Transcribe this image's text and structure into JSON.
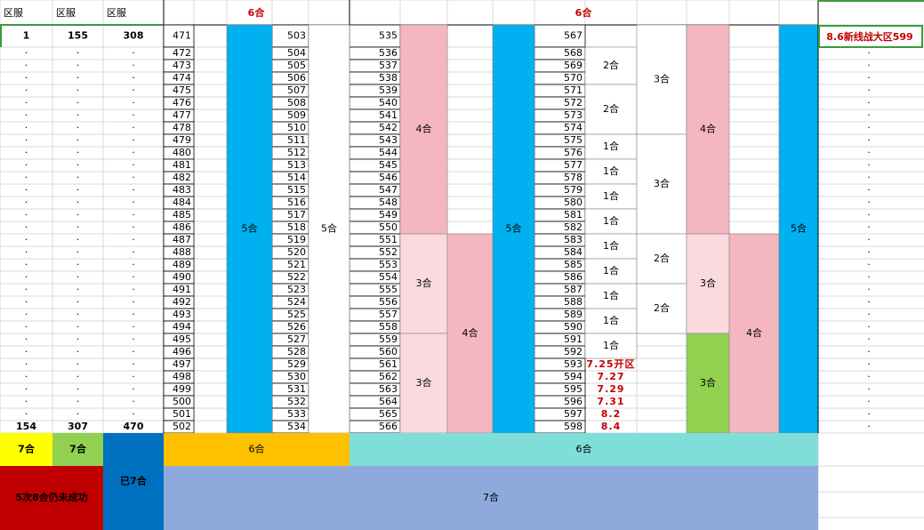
{
  "header": {
    "labels": [
      "区服",
      "区服",
      "区服"
    ],
    "groups": [
      "6合",
      "6合"
    ]
  },
  "first_row": [
    1,
    155,
    308
  ],
  "last_row": [
    154,
    307,
    470
  ],
  "dot": ".",
  "columns": {
    "d": [
      471,
      472,
      473,
      474,
      475,
      476,
      477,
      478,
      479,
      480,
      481,
      482,
      483,
      484,
      485,
      486,
      487,
      488,
      489,
      490,
      491,
      492,
      493,
      494,
      495,
      496,
      497,
      498,
      499,
      500,
      501,
      502
    ],
    "g": [
      503,
      504,
      505,
      506,
      507,
      508,
      509,
      510,
      511,
      512,
      513,
      514,
      515,
      516,
      517,
      518,
      519,
      520,
      521,
      522,
      523,
      524,
      525,
      526,
      527,
      528,
      529,
      530,
      531,
      532,
      533,
      534
    ],
    "i": [
      535,
      536,
      537,
      538,
      539,
      540,
      541,
      542,
      543,
      544,
      545,
      546,
      547,
      548,
      549,
      550,
      551,
      552,
      553,
      554,
      555,
      556,
      557,
      558,
      559,
      560,
      561,
      562,
      563,
      564,
      565,
      566
    ],
    "m": [
      567,
      568,
      569,
      570,
      571,
      572,
      573,
      574,
      575,
      576,
      577,
      578,
      579,
      580,
      581,
      582,
      583,
      584,
      585,
      586,
      587,
      588,
      589,
      590,
      591,
      592,
      593,
      594,
      595,
      596,
      597,
      598
    ]
  },
  "blocks": [
    {
      "label": "5合",
      "fill": "#00b0f0"
    },
    {
      "label": "5合",
      "fill": "#ffffff"
    },
    {
      "label": "4合",
      "fill": "#f4b6bf"
    },
    {
      "label": "3合",
      "fill": "#fadadf"
    },
    {
      "label": "3合",
      "fill": "#fadadf"
    },
    {
      "label": "4合",
      "fill": "#f4b6bf"
    },
    {
      "label": "5合",
      "fill": "#00b0f0"
    },
    {
      "label": "2合",
      "fill": "#ffffff"
    },
    {
      "label": "2合",
      "fill": "#ffffff"
    },
    {
      "label": "1合",
      "fill": "#ffffff"
    },
    {
      "label": "1合",
      "fill": "#ffffff"
    },
    {
      "label": "1合",
      "fill": "#ffffff"
    },
    {
      "label": "1合",
      "fill": "#ffffff"
    },
    {
      "label": "1合",
      "fill": "#ffffff"
    },
    {
      "label": "1合",
      "fill": "#ffffff"
    },
    {
      "label": "1合",
      "fill": "#ffffff"
    },
    {
      "label": "1合",
      "fill": "#ffffff"
    },
    {
      "label": "1合",
      "fill": "#ffffff"
    },
    {
      "label": "3合",
      "fill": "#ffffff"
    },
    {
      "label": "3合",
      "fill": "#ffffff"
    },
    {
      "label": "2合",
      "fill": "#ffffff"
    },
    {
      "label": "2合",
      "fill": "#ffffff"
    },
    {
      "label": "4合",
      "fill": "#f4b6bf"
    },
    {
      "label": "3合",
      "fill": "#fadadf"
    },
    {
      "label": "3合",
      "fill": "#92d050"
    },
    {
      "label": "4合",
      "fill": "#f4b6bf"
    },
    {
      "label": "5合",
      "fill": "#00b0f0"
    }
  ],
  "dates": [
    "7.25开区",
    "7.27",
    "7.29",
    "7.31",
    "8.2",
    "8.4"
  ],
  "side_label": "8.6新线战大区599",
  "bottom": [
    {
      "label": "7合",
      "fill": "#ffff00"
    },
    {
      "label": "7合",
      "fill": "#92d050"
    },
    {
      "label": "已7合",
      "fill": "#0070c0"
    },
    {
      "label": "6合",
      "fill": "#ffc000"
    },
    {
      "label": "6合",
      "fill": "#7fded8"
    },
    {
      "label": "5次8合仍未成功",
      "fill": "#c00000"
    },
    {
      "label": "7合",
      "fill": "#8eaadc"
    }
  ]
}
